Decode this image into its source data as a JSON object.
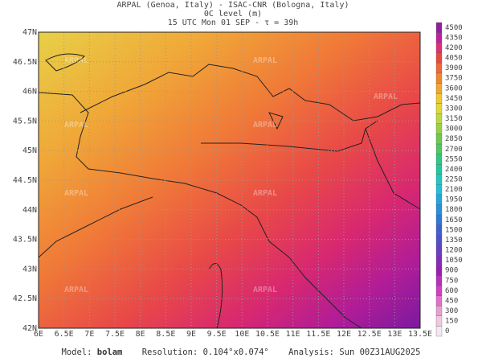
{
  "header": {
    "line1": "ARPAL (Genoa, Italy)  -  ISAC-CNR (Bologna, Italy)",
    "line2": "0C level (m)",
    "line3": "15 UTC Mon 01 SEP  -  τ = 39h"
  },
  "map": {
    "xticks": [
      "6E",
      "6.5E",
      "7E",
      "7.5E",
      "8E",
      "8.5E",
      "9E",
      "9.5E",
      "10E",
      "10.5E",
      "11E",
      "11.5E",
      "12E",
      "12.5E",
      "13E",
      "13.5E"
    ],
    "yticks": [
      "47N",
      "46.5N",
      "46N",
      "45.5N",
      "45N",
      "44.5N",
      "44N",
      "43.5N",
      "43N",
      "42.5N",
      "42N"
    ],
    "watermark": "ARPAL"
  },
  "colorbar": {
    "levels": [
      0,
      150,
      300,
      450,
      600,
      750,
      900,
      1050,
      1200,
      1350,
      1500,
      1650,
      1800,
      1950,
      2100,
      2250,
      2400,
      2550,
      2700,
      2850,
      3000,
      3150,
      3300,
      3450,
      3600,
      3750,
      3900,
      4050,
      4200,
      4350,
      4500
    ],
    "colors": [
      "#f5e6f0",
      "#f0c8e0",
      "#e8a0d0",
      "#e070c8",
      "#d040c0",
      "#b830b8",
      "#9820b0",
      "#8030b8",
      "#6840c0",
      "#5050c8",
      "#4060d0",
      "#3078d8",
      "#2890e0",
      "#20a8e0",
      "#20c0d8",
      "#20c8c0",
      "#20c8a0",
      "#30c880",
      "#50c860",
      "#70c850",
      "#98d048",
      "#c0d840",
      "#e0d838",
      "#f0c830",
      "#f0a830",
      "#f08830",
      "#f06838",
      "#e84840",
      "#e03070",
      "#c020a0",
      "#9020a0"
    ]
  },
  "footer": {
    "model_label": "Model:",
    "model": "bolam",
    "resolution_label": "Resolution:",
    "resolution": "0.104°x0.074°",
    "analysis_label": "Analysis:",
    "analysis": "Sun 00Z31AUG2025"
  }
}
